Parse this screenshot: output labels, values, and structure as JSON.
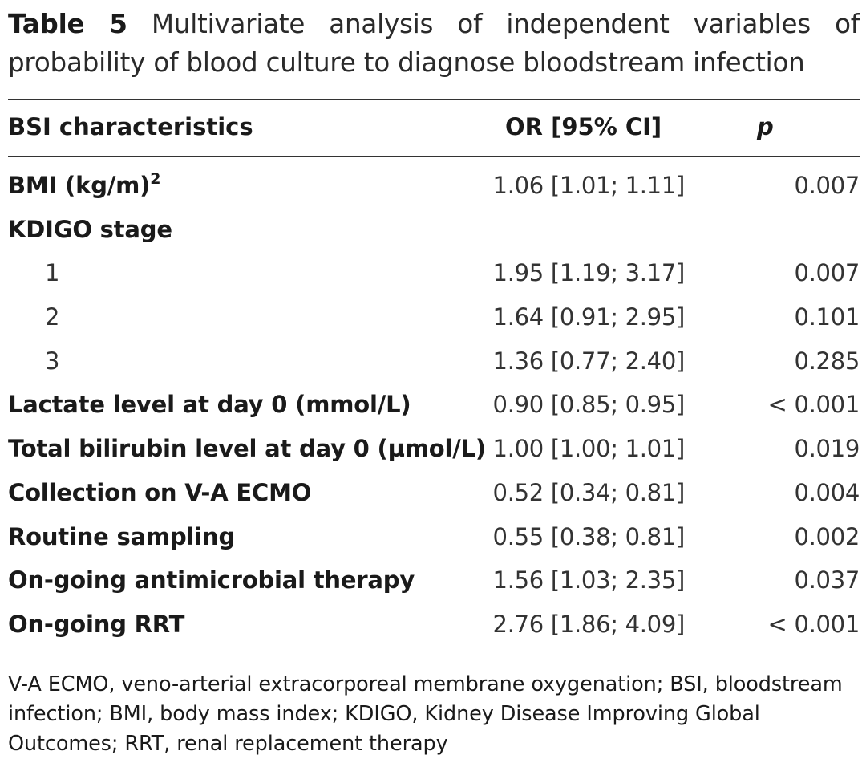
{
  "caption": {
    "label": "Table 5",
    "text": "Multivariate analysis of independent variables of probability of blood culture to diagnose bloodstream infection"
  },
  "headers": {
    "characteristics": "BSI characteristics",
    "or": "OR [95% CI]",
    "p": "p"
  },
  "rows": [
    {
      "label": "BMI (kg/m)",
      "sup": "2",
      "or": "1.06 [1.01; 1.11]",
      "p": "0.007"
    },
    {
      "label": "KDIGO stage",
      "or": "",
      "p": ""
    },
    {
      "label": "1",
      "or": "1.95 [1.19; 3.17]",
      "p": "0.007"
    },
    {
      "label": "2",
      "or": "1.64 [0.91; 2.95]",
      "p": "0.101"
    },
    {
      "label": "3",
      "or": "1.36 [0.77; 2.40]",
      "p": "0.285"
    },
    {
      "label": "Lactate level at day 0 (mmol/L)",
      "or": "0.90 [0.85; 0.95]",
      "p": "< 0.001"
    },
    {
      "label": "Total bilirubin level at day 0 (µmol/L)",
      "or": "1.00 [1.00; 1.01]",
      "p": "0.019"
    },
    {
      "label": "Collection on V-A ECMO",
      "or": "0.52 [0.34; 0.81]",
      "p": "0.004"
    },
    {
      "label": "Routine sampling",
      "or": "0.55 [0.38; 0.81]",
      "p": "0.002"
    },
    {
      "label": "On-going antimicrobial therapy",
      "or": "1.56 [1.03; 2.35]",
      "p": "0.037"
    },
    {
      "label": "On-going RRT",
      "or": "2.76 [1.86; 4.09]",
      "p": "< 0.001"
    }
  ],
  "footnote": "V-A ECMO, veno-arterial extracorporeal membrane oxygenation; BSI, bloodstream infection; BMI, body mass index; KDIGO, Kidney Disease Improving Global Outcomes; RRT, renal replacement therapy"
}
